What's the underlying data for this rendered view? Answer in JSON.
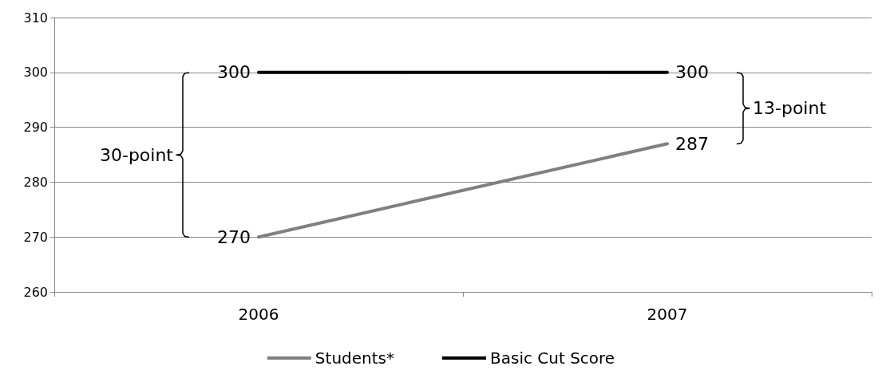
{
  "chart_data": {
    "type": "line",
    "categories": [
      "2006",
      "2007"
    ],
    "series": [
      {
        "name": "Students*",
        "color": "#808080",
        "values": [
          270,
          287
        ]
      },
      {
        "name": "Basic Cut Score",
        "color": "#000000",
        "values": [
          300,
          300
        ]
      }
    ],
    "ylim": [
      260,
      310
    ],
    "yticks": [
      260,
      270,
      280,
      290,
      300,
      310
    ],
    "grid": "y",
    "legend": "bottom",
    "data_labels": true,
    "marker": "none",
    "line_style": "solid",
    "annotations": [
      "30-point",
      "13-point"
    ]
  }
}
